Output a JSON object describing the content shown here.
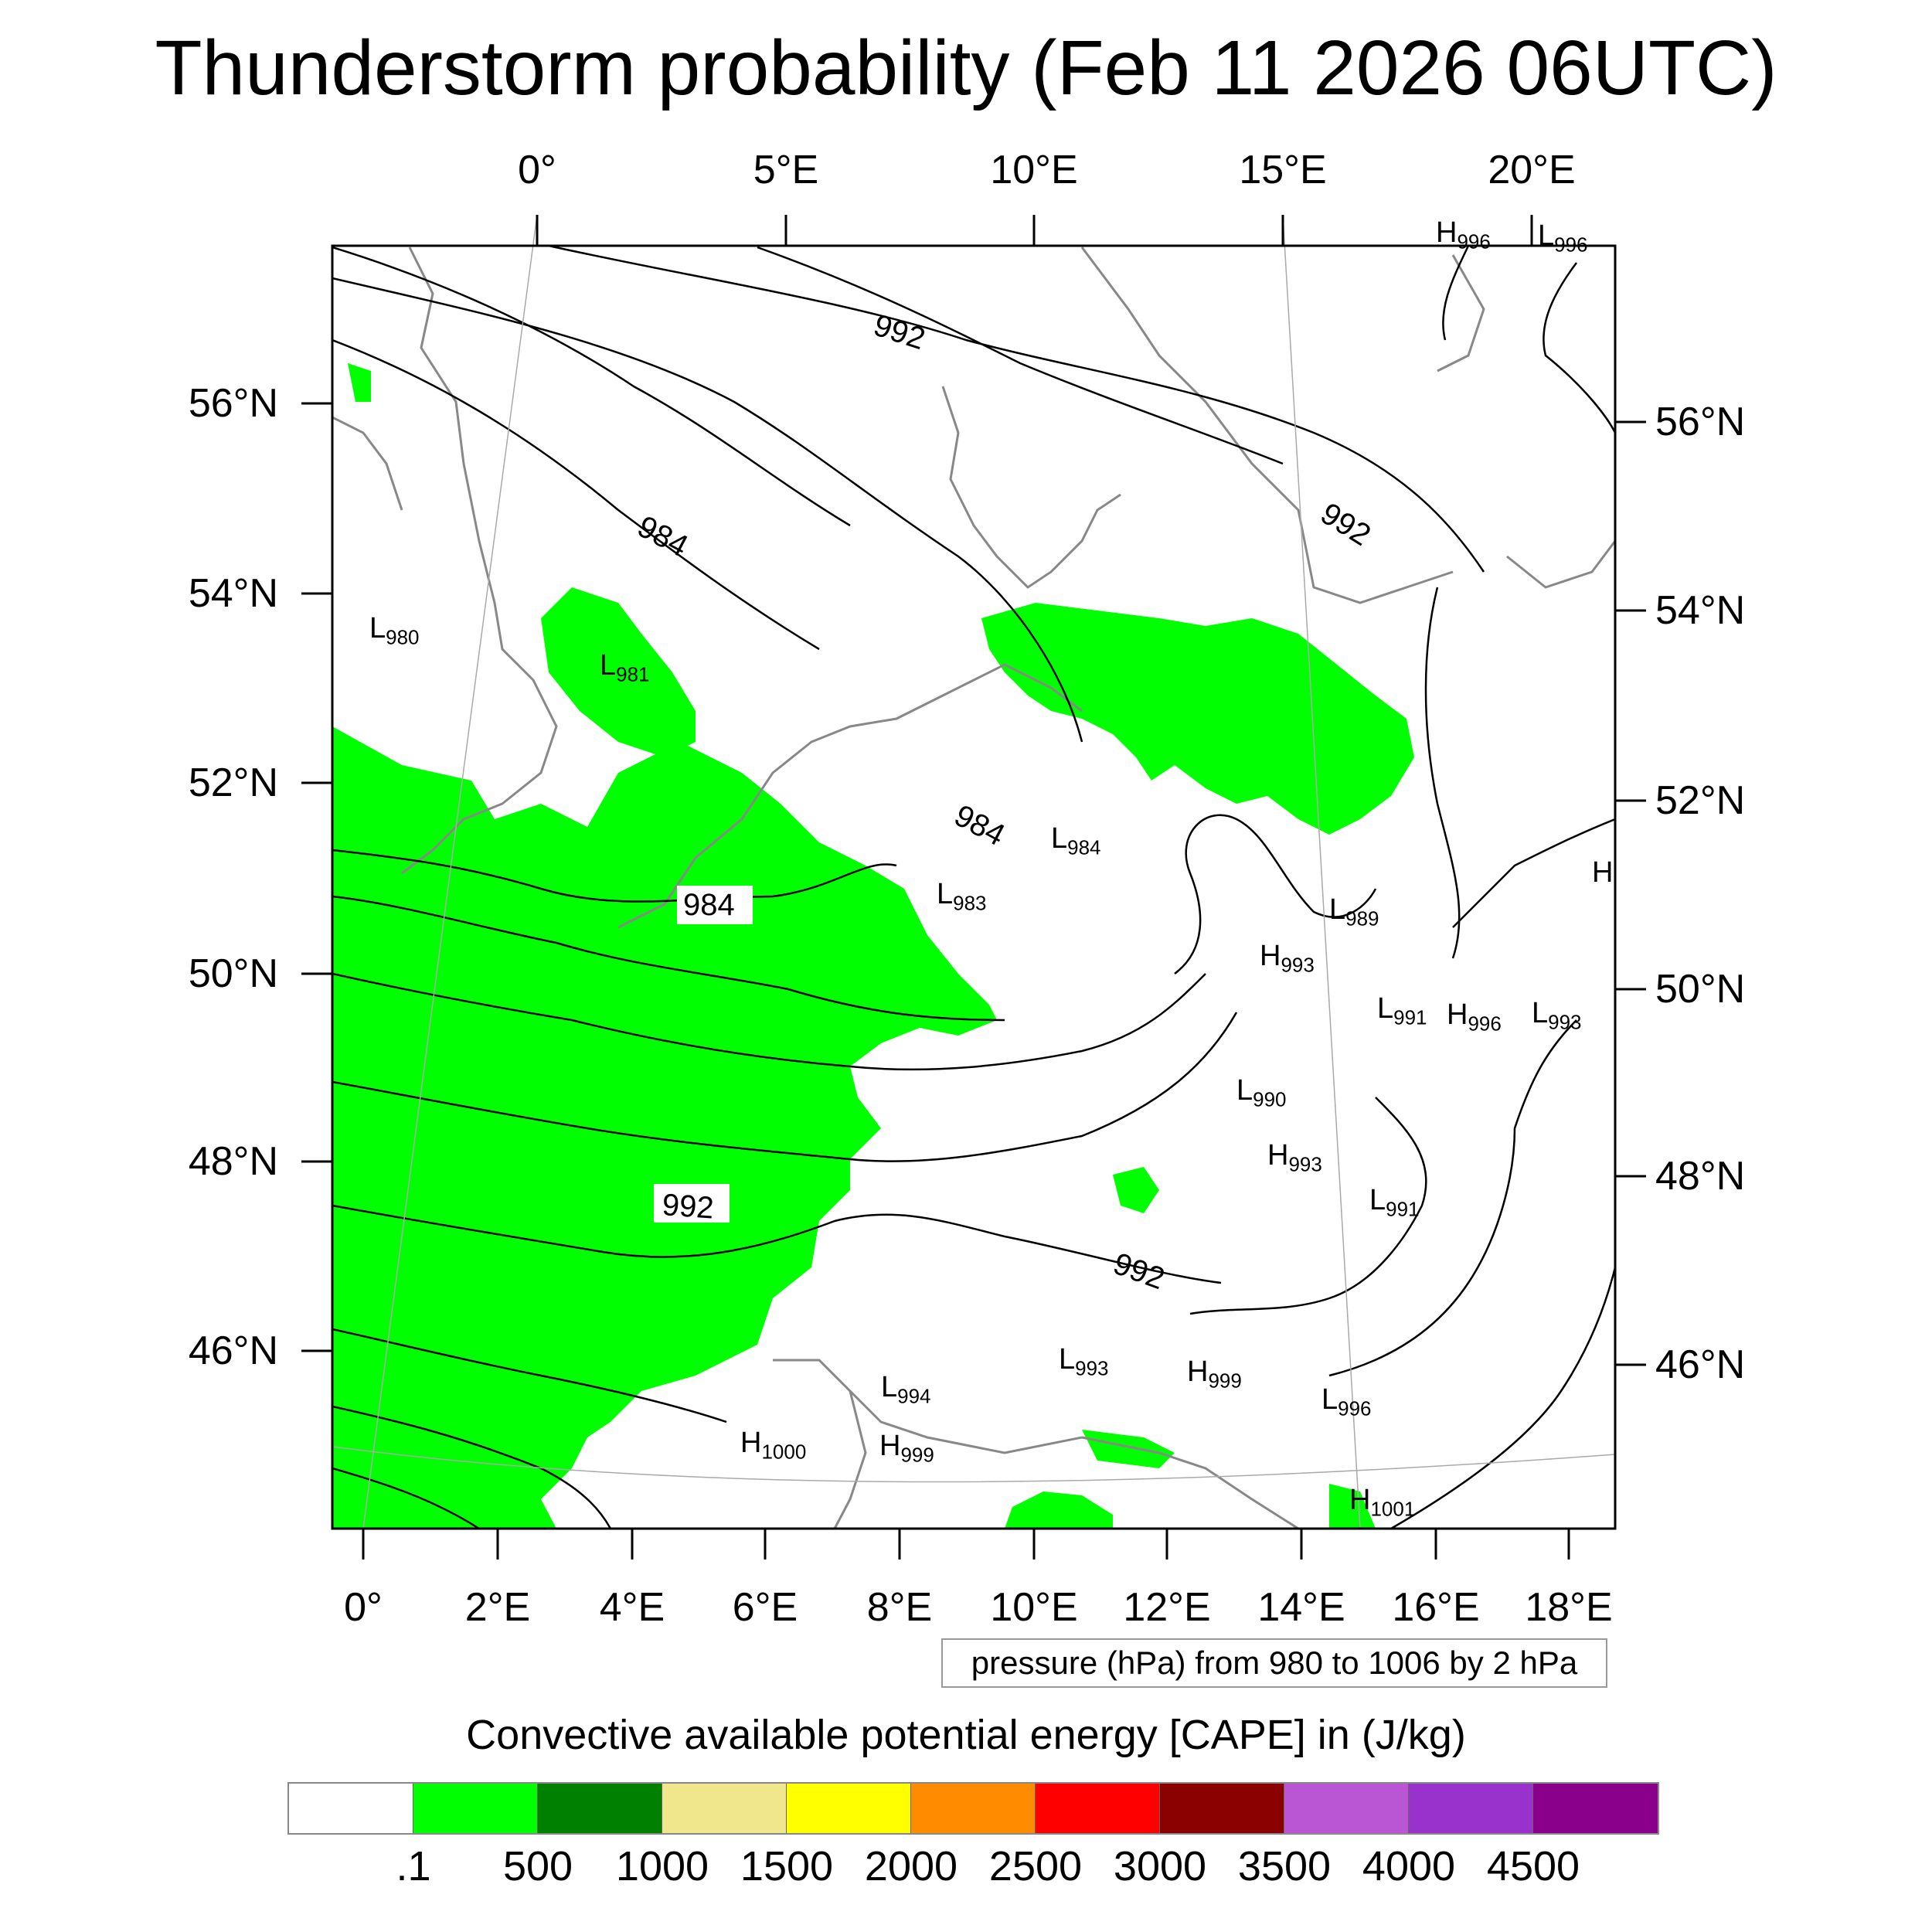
{
  "title": "Thunderstorm probability (Feb 11 2026 06UTC)",
  "top_lon_labels": [
    "0°",
    "5°E",
    "10°E",
    "15°E",
    "20°E"
  ],
  "left_lat_labels": [
    "56°N",
    "54°N",
    "52°N",
    "50°N",
    "48°N",
    "46°N"
  ],
  "right_lat_labels": [
    "56°N",
    "54°N",
    "52°N",
    "50°N",
    "48°N",
    "46°N"
  ],
  "bottom_lon_labels": [
    "0°",
    "2°E",
    "4°E",
    "6°E",
    "8°E",
    "10°E",
    "12°E",
    "14°E",
    "16°E",
    "18°E"
  ],
  "isobar_labels": [
    "992",
    "984",
    "992",
    "984",
    "984",
    "992",
    "992"
  ],
  "pressure_systems": [
    {
      "type": "H",
      "value": "996"
    },
    {
      "type": "L",
      "value": "996"
    },
    {
      "type": "L",
      "value": "980"
    },
    {
      "type": "L",
      "value": "981"
    },
    {
      "type": "L",
      "value": "984"
    },
    {
      "type": "L",
      "value": "983"
    },
    {
      "type": "L",
      "value": "989"
    },
    {
      "type": "H",
      "value": "993"
    },
    {
      "type": "L",
      "value": "991"
    },
    {
      "type": "H",
      "value": "996"
    },
    {
      "type": "L",
      "value": "993"
    },
    {
      "type": "L",
      "value": "990"
    },
    {
      "type": "H",
      "value": "993"
    },
    {
      "type": "L",
      "value": "991"
    },
    {
      "type": "L",
      "value": "993"
    },
    {
      "type": "H",
      "value": "999"
    },
    {
      "type": "L",
      "value": "994"
    },
    {
      "type": "H",
      "value": "1000"
    },
    {
      "type": "H",
      "value": "999"
    },
    {
      "type": "L",
      "value": "996"
    },
    {
      "type": "H",
      "value": "1001"
    },
    {
      "type": "H",
      "value": ""
    }
  ],
  "info_box": "pressure (hPa) from 980 to 1006 by 2 hPa",
  "legend": {
    "title": "Convective available potential energy [CAPE] in (J/kg)",
    "colors": [
      "#ffffff",
      "#00ff00",
      "#008000",
      "#f0e68c",
      "#ffff00",
      "#ff8c00",
      "#ff0000",
      "#8b0000",
      "#ba55d3",
      "#9932cc",
      "#8b008b"
    ],
    "labels": [
      ".1",
      "500",
      "1000",
      "1500",
      "2000",
      "2500",
      "3000",
      "3500",
      "4000",
      "4500"
    ]
  },
  "cape_fill_color": "#00ff00"
}
